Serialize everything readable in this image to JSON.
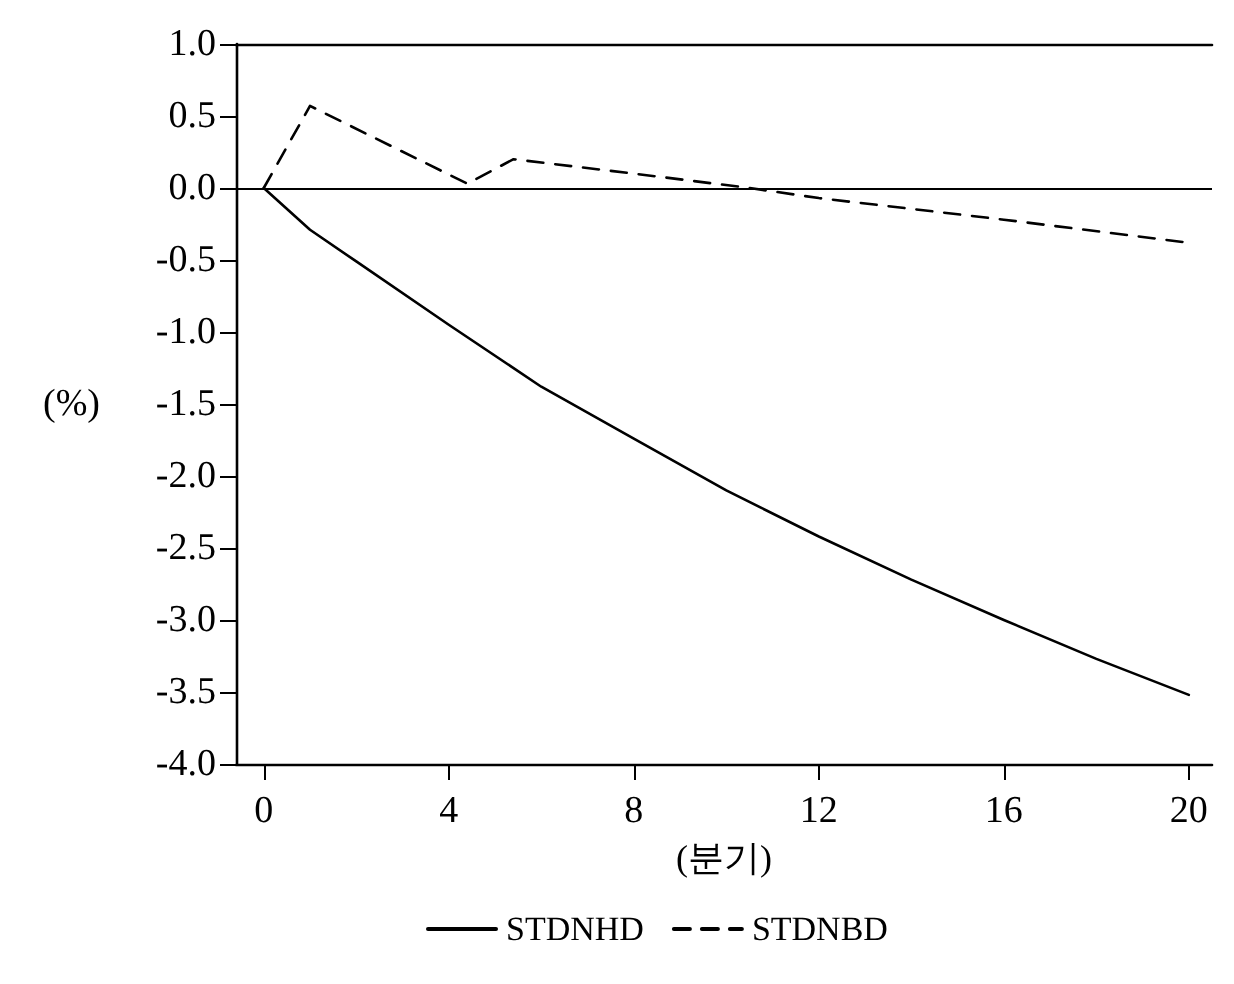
{
  "chart_data": {
    "type": "line",
    "xlabel": "(분기)",
    "ylabel": "(%)",
    "x": [
      0,
      1,
      2,
      4,
      6,
      8,
      10,
      12,
      14,
      16,
      18,
      20
    ],
    "series": [
      {
        "name": "STDNHD",
        "color": "#000000",
        "line_style": "solid",
        "values": [
          0,
          -0.29,
          -0.51,
          -0.95,
          -1.38,
          -1.74,
          -2.1,
          -2.42,
          -2.72,
          -3.0,
          -3.27,
          -3.52
        ]
      },
      {
        "name": "STDNBD",
        "color": "#000000",
        "line_style": "dashed",
        "x": [
          0,
          1,
          4.4,
          5.4,
          8,
          10.5,
          12,
          16,
          20
        ],
        "values": [
          0,
          0.57,
          0.03,
          0.2,
          0.1,
          0,
          -0.07,
          -0.22,
          -0.38
        ]
      }
    ],
    "xlim": [
      -0.6,
      20.5
    ],
    "xticks": [
      0,
      4,
      8,
      12,
      16,
      20
    ],
    "ylim": [
      -4.0,
      1.0
    ],
    "yticks": [
      {
        "value": -4,
        "label": "-4.0"
      },
      {
        "value": -3.5,
        "label": "-3.5"
      },
      {
        "value": -3,
        "label": "-3.0"
      },
      {
        "value": -2.5,
        "label": "-2.5"
      },
      {
        "value": -2,
        "label": "-2.0"
      },
      {
        "value": -1.5,
        "label": "-1.5"
      },
      {
        "value": -1,
        "label": "-1.0"
      },
      {
        "value": -0.5,
        "label": "-0.5"
      },
      {
        "value": 0,
        "label": "0.0"
      },
      {
        "value": 0.5,
        "label": "0.5"
      },
      {
        "value": 1,
        "label": "1.0"
      }
    ],
    "ref_lines": [
      {
        "axis": "y",
        "value": 0,
        "color": "#000000"
      }
    ],
    "grid": false,
    "legend": "bottom",
    "marker": "none"
  }
}
